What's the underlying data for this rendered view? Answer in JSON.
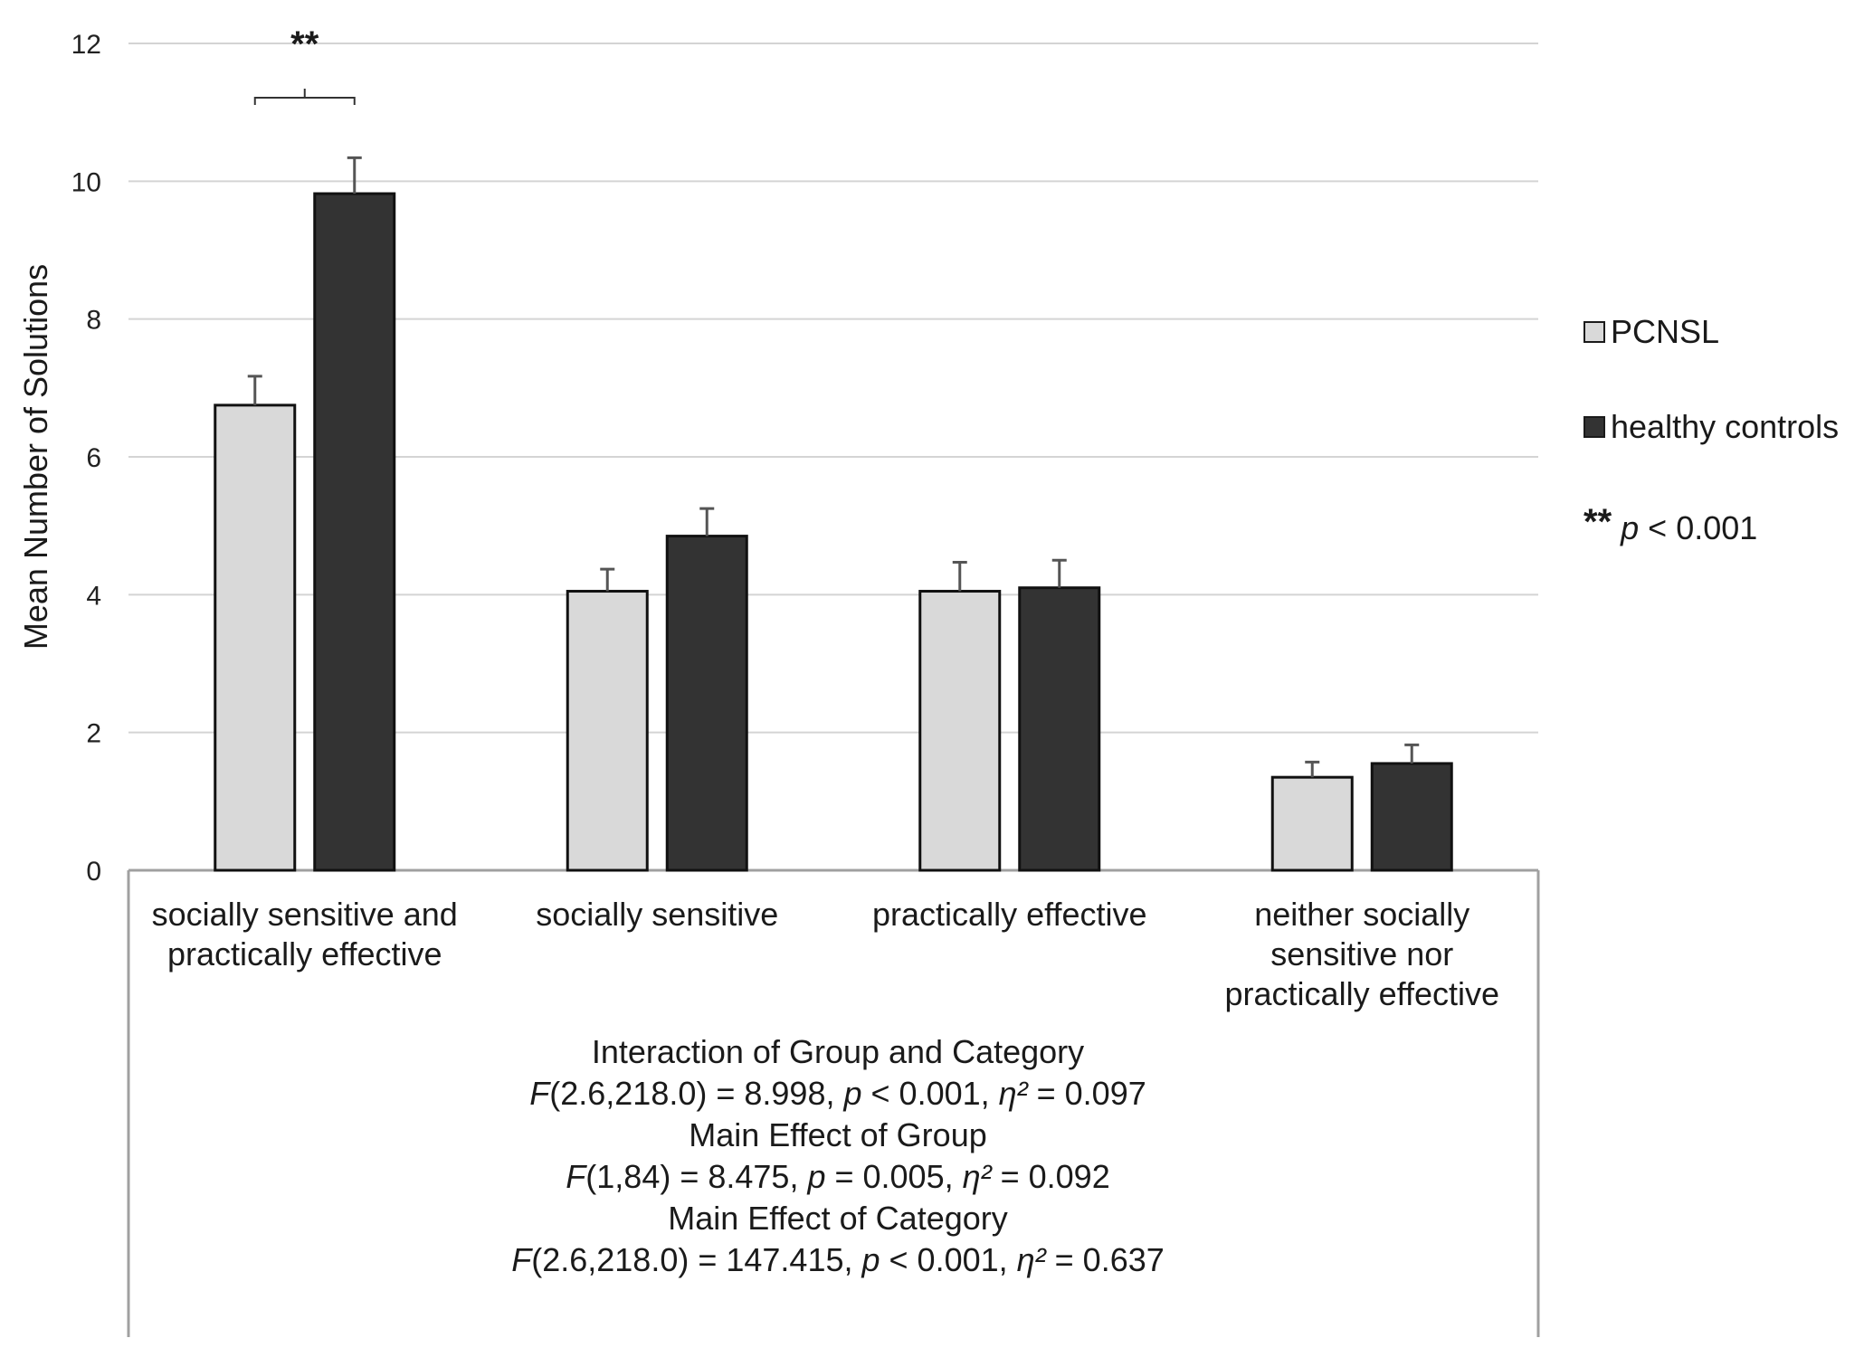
{
  "chart_data": {
    "type": "bar",
    "ylabel": "Mean Number of Solutions",
    "ylim": [
      0,
      12
    ],
    "yticks": [
      "0",
      "2",
      "4",
      "6",
      "8",
      "10",
      "12"
    ],
    "grid": true,
    "legend_position": "right",
    "categories": [
      [
        "socially sensitive and",
        "practically effective"
      ],
      [
        "socially sensitive"
      ],
      [
        "practically effective"
      ],
      [
        "neither socially",
        "sensitive nor",
        "practically effective"
      ]
    ],
    "series": [
      {
        "name": "PCNSL",
        "color": "#d9d9d9",
        "values": [
          6.75,
          4.05,
          4.05,
          1.35
        ],
        "errors": [
          0.42,
          0.32,
          0.42,
          0.22
        ]
      },
      {
        "name": "healthy controls",
        "color": "#333333",
        "values": [
          9.82,
          4.85,
          4.1,
          1.55
        ],
        "errors": [
          0.52,
          0.4,
          0.4,
          0.27
        ]
      }
    ],
    "significance": {
      "category_index": 0,
      "marker": "**"
    },
    "significance_note": {
      "marker": "**",
      "p_symbol": "p",
      "text": " < 0.001"
    },
    "statistics": [
      {
        "heading": "Interaction of Group and Category",
        "parts": [
          {
            "i": "F"
          },
          {
            "t": "(2.6,218.0) = 8.998, "
          },
          {
            "i": "p"
          },
          {
            "t": " < 0.001, "
          },
          {
            "i": "η²"
          },
          {
            "t": " = 0.097"
          }
        ]
      },
      {
        "heading": "Main Effect of Group",
        "parts": [
          {
            "i": "F"
          },
          {
            "t": "(1,84) = 8.475, "
          },
          {
            "i": "p"
          },
          {
            "t": " = 0.005, "
          },
          {
            "i": "η²"
          },
          {
            "t": " = 0.092"
          }
        ]
      },
      {
        "heading": "Main Effect of Category",
        "parts": [
          {
            "i": "F"
          },
          {
            "t": "(2.6,218.0) = 147.415, "
          },
          {
            "i": "p"
          },
          {
            "t": " < 0.001, "
          },
          {
            "i": "η²"
          },
          {
            "t": " = 0.637"
          }
        ]
      }
    ]
  }
}
